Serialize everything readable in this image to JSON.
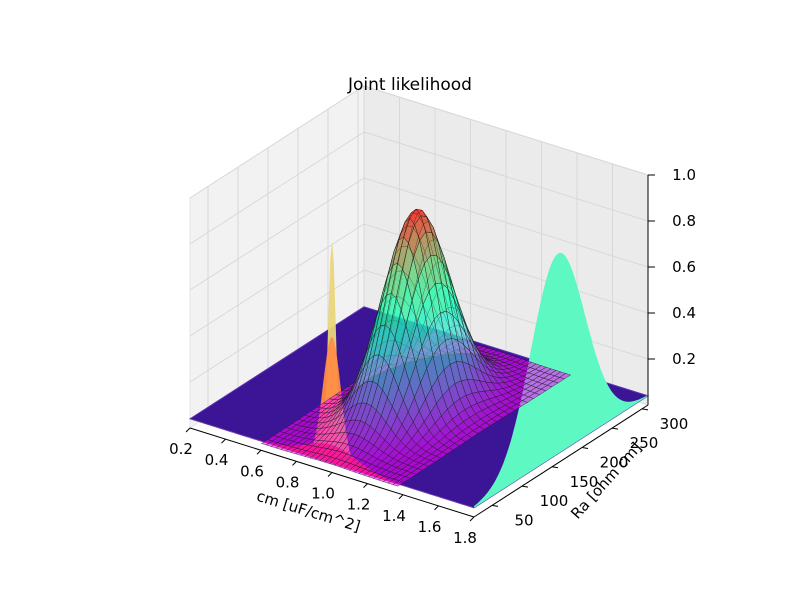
{
  "chart_data": {
    "type": "surface3d",
    "title": "Joint likelihood",
    "xlabel": "cm [uF/cm^2]",
    "ylabel": "Ra [ohm cm]",
    "zlabel": "",
    "xlim": [
      0.2,
      1.8
    ],
    "ylim": [
      20,
      310
    ],
    "zlim": [
      0.0,
      1.0
    ],
    "xticks": [
      "0.2",
      "0.4",
      "0.6",
      "0.8",
      "1.0",
      "1.2",
      "1.4",
      "1.6",
      "1.8"
    ],
    "yticks": [
      "50",
      "100",
      "150",
      "200",
      "250",
      "300"
    ],
    "zticks": [
      "0.2",
      "0.4",
      "0.6",
      "0.8",
      "1.0"
    ],
    "grid": true,
    "series": [
      {
        "kind": "surface",
        "colormap": "rainbow",
        "center_x": 1.0,
        "center_y": 160,
        "sigma_x": 0.12,
        "sigma_y": 45,
        "peak": 0.87
      },
      {
        "kind": "marginal-cm",
        "color": "#e8d67a",
        "center_x": 1.0,
        "width_x": 0.022,
        "peak": 0.97
      },
      {
        "kind": "marginal-cm",
        "color": "#ff8c44",
        "center_x": 1.0,
        "width_x": 0.05,
        "peak": 0.55
      },
      {
        "kind": "marginal-cm",
        "color": "#ee2a20",
        "center_x": 1.0,
        "width_x": 0.14,
        "peak": 0.08
      },
      {
        "kind": "marginal-Ra",
        "color": "#5ef8c2",
        "center_y": 160,
        "sigma_y": 45,
        "peak": 0.87
      }
    ]
  }
}
